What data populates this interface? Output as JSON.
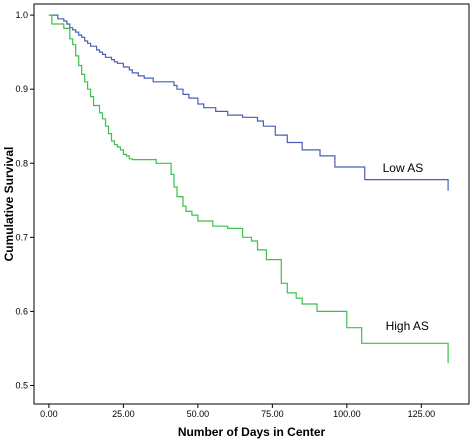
{
  "chart_data": {
    "type": "line",
    "step": true,
    "title": "",
    "xlabel": "Number of Days in Center",
    "ylabel": "Cumulative Survival",
    "xlim": [
      -5,
      141
    ],
    "ylim": [
      0.475,
      1.015
    ],
    "xticks": [
      {
        "value": 0,
        "label": "0.00"
      },
      {
        "value": 25,
        "label": "25.00"
      },
      {
        "value": 50,
        "label": "50.00"
      },
      {
        "value": 75,
        "label": "75.00"
      },
      {
        "value": 100,
        "label": "100.00"
      },
      {
        "value": 125,
        "label": "125.00"
      }
    ],
    "yticks": [
      {
        "value": 0.5,
        "label": "0.5"
      },
      {
        "value": 0.6,
        "label": "0.6"
      },
      {
        "value": 0.7,
        "label": "0.7"
      },
      {
        "value": 0.8,
        "label": "0.8"
      },
      {
        "value": 0.9,
        "label": "0.9"
      },
      {
        "value": 1.0,
        "label": "1.0"
      }
    ],
    "grid": false,
    "legend": "none",
    "series": [
      {
        "name": "Low AS",
        "color": "#4a5eb5",
        "label_x": 112,
        "label_y": 0.788,
        "x": [
          0,
          3,
          5,
          6,
          7,
          8,
          9,
          10,
          11,
          12,
          13,
          14,
          16,
          17,
          18,
          19,
          21,
          22,
          23,
          25,
          27,
          28,
          30,
          32,
          35,
          40,
          42,
          43,
          45,
          47,
          50,
          52,
          56,
          60,
          65,
          70,
          72,
          76,
          80,
          85,
          91,
          96,
          106,
          134
        ],
        "y": [
          1.0,
          0.995,
          0.992,
          0.988,
          0.983,
          0.98,
          0.977,
          0.973,
          0.97,
          0.965,
          0.962,
          0.958,
          0.953,
          0.95,
          0.947,
          0.943,
          0.94,
          0.937,
          0.935,
          0.93,
          0.926,
          0.922,
          0.918,
          0.915,
          0.91,
          0.91,
          0.905,
          0.9,
          0.893,
          0.888,
          0.88,
          0.875,
          0.87,
          0.865,
          0.862,
          0.857,
          0.85,
          0.838,
          0.828,
          0.818,
          0.81,
          0.795,
          0.778,
          0.763
        ]
      },
      {
        "name": "High AS",
        "color": "#3ac24c",
        "label_x": 113,
        "label_y": 0.575,
        "x": [
          0,
          1,
          5,
          7,
          8,
          9,
          10,
          11,
          12,
          13,
          14,
          15,
          17,
          18,
          19,
          20,
          21,
          22,
          23,
          24,
          25,
          26,
          27,
          28,
          30,
          33,
          36,
          41,
          42,
          43,
          45,
          46,
          48,
          50,
          55,
          60,
          65,
          68,
          70,
          73,
          78,
          80,
          83,
          85,
          90,
          95,
          100,
          105,
          134
        ],
        "y": [
          1.0,
          0.988,
          0.982,
          0.968,
          0.96,
          0.945,
          0.932,
          0.92,
          0.91,
          0.9,
          0.89,
          0.878,
          0.868,
          0.86,
          0.85,
          0.84,
          0.83,
          0.825,
          0.822,
          0.818,
          0.812,
          0.81,
          0.806,
          0.805,
          0.805,
          0.805,
          0.8,
          0.785,
          0.768,
          0.755,
          0.742,
          0.735,
          0.73,
          0.722,
          0.715,
          0.712,
          0.7,
          0.695,
          0.683,
          0.67,
          0.638,
          0.625,
          0.618,
          0.61,
          0.6,
          0.6,
          0.578,
          0.557,
          0.53
        ]
      }
    ]
  }
}
